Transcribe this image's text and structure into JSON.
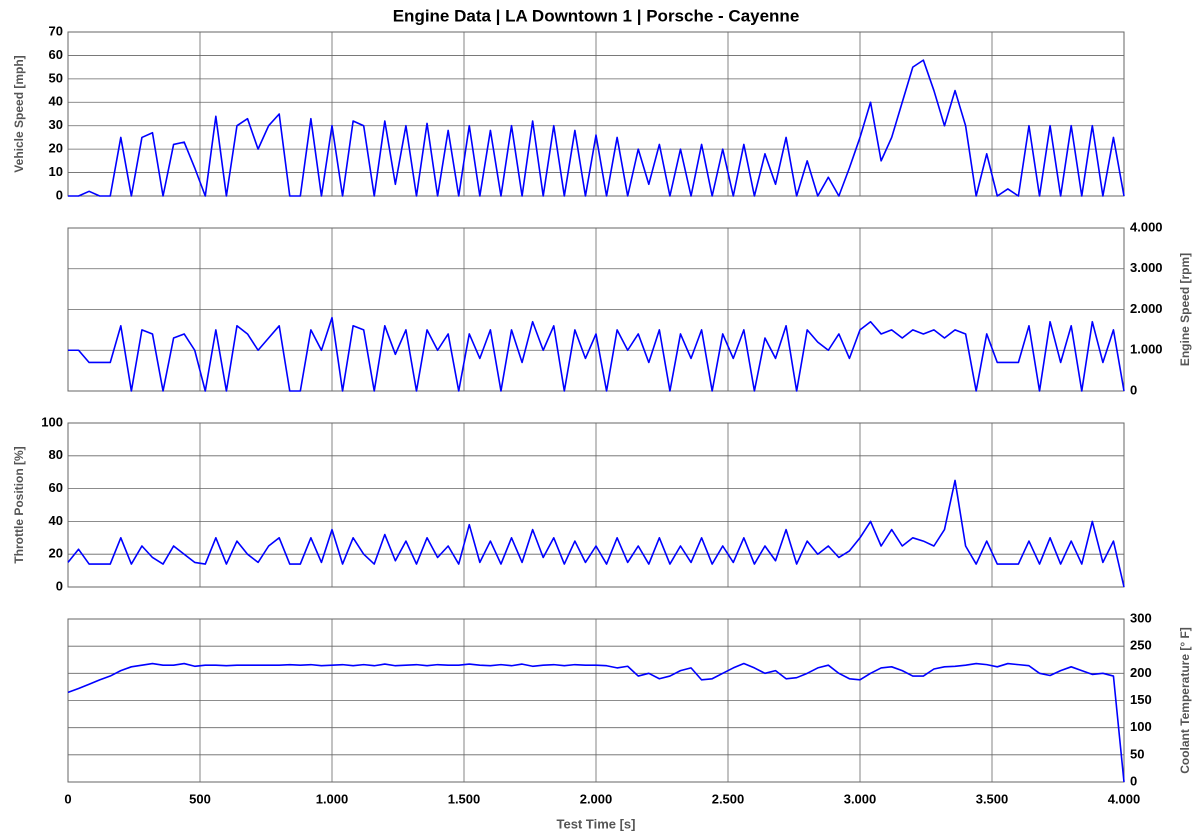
{
  "chart_data": [
    {
      "type": "line",
      "title": "Engine Data   |   LA Downtown 1   |   Porsche - Cayenne",
      "ylabel": "Vehicle Speed  [mph]",
      "y_axis_side": "left",
      "grid": true,
      "xlim": [
        0,
        4000
      ],
      "xticks": [
        0,
        500,
        1000,
        1500,
        2000,
        2500,
        3000,
        3500,
        4000
      ],
      "ylim": [
        0,
        70
      ],
      "yticks": [
        0,
        10,
        20,
        30,
        40,
        50,
        60,
        70
      ],
      "x": [
        0,
        40,
        80,
        120,
        160,
        200,
        240,
        280,
        320,
        360,
        400,
        440,
        480,
        520,
        560,
        600,
        640,
        680,
        720,
        760,
        800,
        840,
        880,
        920,
        960,
        1000,
        1040,
        1080,
        1120,
        1160,
        1200,
        1240,
        1280,
        1320,
        1360,
        1400,
        1440,
        1480,
        1520,
        1560,
        1600,
        1640,
        1680,
        1720,
        1760,
        1800,
        1840,
        1880,
        1920,
        1960,
        2000,
        2040,
        2080,
        2120,
        2160,
        2200,
        2240,
        2280,
        2320,
        2360,
        2400,
        2440,
        2480,
        2520,
        2560,
        2600,
        2640,
        2680,
        2720,
        2760,
        2800,
        2840,
        2880,
        2920,
        2960,
        3000,
        3040,
        3080,
        3120,
        3160,
        3200,
        3240,
        3280,
        3320,
        3360,
        3400,
        3440,
        3480,
        3520,
        3560,
        3600,
        3640,
        3680,
        3720,
        3760,
        3800,
        3840,
        3880,
        3920,
        3960,
        4000
      ],
      "series": [
        {
          "name": "Vehicle Speed",
          "color": "#0000ff",
          "values": [
            0,
            0,
            2,
            0,
            0,
            25,
            0,
            25,
            27,
            0,
            22,
            23,
            12,
            0,
            34,
            0,
            30,
            33,
            20,
            30,
            35,
            0,
            0,
            33,
            0,
            30,
            0,
            32,
            30,
            0,
            32,
            5,
            30,
            0,
            31,
            0,
            28,
            0,
            30,
            0,
            28,
            0,
            30,
            0,
            32,
            0,
            30,
            0,
            28,
            0,
            26,
            0,
            25,
            0,
            20,
            5,
            22,
            0,
            20,
            0,
            22,
            0,
            20,
            0,
            22,
            0,
            18,
            5,
            25,
            0,
            15,
            0,
            8,
            0,
            12,
            25,
            40,
            15,
            25,
            40,
            55,
            58,
            45,
            30,
            45,
            30,
            0,
            18,
            0,
            3,
            0,
            30,
            0,
            30,
            0,
            30,
            0,
            30,
            0,
            25,
            0
          ]
        }
      ]
    },
    {
      "type": "line",
      "ylabel": "Engine Speed  [rpm]",
      "y_axis_side": "right",
      "grid": true,
      "xlim": [
        0,
        4000
      ],
      "xticks": [
        0,
        500,
        1000,
        1500,
        2000,
        2500,
        3000,
        3500,
        4000
      ],
      "ylim": [
        0,
        4000
      ],
      "yticks": [
        0,
        {
          "value": 1000,
          "label": "1.000"
        },
        {
          "value": 2000,
          "label": "2.000"
        },
        {
          "value": 3000,
          "label": "3.000"
        },
        {
          "value": 4000,
          "label": "4.000"
        }
      ],
      "x": [
        0,
        40,
        80,
        120,
        160,
        200,
        240,
        280,
        320,
        360,
        400,
        440,
        480,
        520,
        560,
        600,
        640,
        680,
        720,
        760,
        800,
        840,
        880,
        920,
        960,
        1000,
        1040,
        1080,
        1120,
        1160,
        1200,
        1240,
        1280,
        1320,
        1360,
        1400,
        1440,
        1480,
        1520,
        1560,
        1600,
        1640,
        1680,
        1720,
        1760,
        1800,
        1840,
        1880,
        1920,
        1960,
        2000,
        2040,
        2080,
        2120,
        2160,
        2200,
        2240,
        2280,
        2320,
        2360,
        2400,
        2440,
        2480,
        2520,
        2560,
        2600,
        2640,
        2680,
        2720,
        2760,
        2800,
        2840,
        2880,
        2920,
        2960,
        3000,
        3040,
        3080,
        3120,
        3160,
        3200,
        3240,
        3280,
        3320,
        3360,
        3400,
        3440,
        3480,
        3520,
        3560,
        3600,
        3640,
        3680,
        3720,
        3760,
        3800,
        3840,
        3880,
        3920,
        3960,
        4000
      ],
      "series": [
        {
          "name": "Engine Speed",
          "color": "#0000ff",
          "values": [
            1000,
            1000,
            700,
            700,
            700,
            1600,
            0,
            1500,
            1400,
            0,
            1300,
            1400,
            1000,
            0,
            1500,
            0,
            1600,
            1400,
            1000,
            1300,
            1600,
            0,
            0,
            1500,
            1000,
            1800,
            0,
            1600,
            1500,
            0,
            1600,
            900,
            1500,
            0,
            1500,
            1000,
            1400,
            0,
            1400,
            800,
            1500,
            0,
            1500,
            700,
            1700,
            1000,
            1600,
            0,
            1500,
            800,
            1400,
            0,
            1500,
            1000,
            1400,
            700,
            1500,
            0,
            1400,
            800,
            1500,
            0,
            1400,
            800,
            1500,
            0,
            1300,
            800,
            1600,
            0,
            1500,
            1200,
            1000,
            1400,
            800,
            1500,
            1700,
            1400,
            1500,
            1300,
            1500,
            1400,
            1500,
            1300,
            1500,
            1400,
            0,
            1400,
            700,
            700,
            700,
            1600,
            0,
            1700,
            700,
            1600,
            0,
            1700,
            700,
            1500,
            0
          ]
        }
      ]
    },
    {
      "type": "line",
      "ylabel": "Throttle Position  [%]",
      "y_axis_side": "left",
      "grid": true,
      "xlim": [
        0,
        4000
      ],
      "xticks": [
        0,
        500,
        1000,
        1500,
        2000,
        2500,
        3000,
        3500,
        4000
      ],
      "ylim": [
        0,
        100
      ],
      "yticks": [
        0,
        20,
        40,
        60,
        80,
        100
      ],
      "x": [
        0,
        40,
        80,
        120,
        160,
        200,
        240,
        280,
        320,
        360,
        400,
        440,
        480,
        520,
        560,
        600,
        640,
        680,
        720,
        760,
        800,
        840,
        880,
        920,
        960,
        1000,
        1040,
        1080,
        1120,
        1160,
        1200,
        1240,
        1280,
        1320,
        1360,
        1400,
        1440,
        1480,
        1520,
        1560,
        1600,
        1640,
        1680,
        1720,
        1760,
        1800,
        1840,
        1880,
        1920,
        1960,
        2000,
        2040,
        2080,
        2120,
        2160,
        2200,
        2240,
        2280,
        2320,
        2360,
        2400,
        2440,
        2480,
        2520,
        2560,
        2600,
        2640,
        2680,
        2720,
        2760,
        2800,
        2840,
        2880,
        2920,
        2960,
        3000,
        3040,
        3080,
        3120,
        3160,
        3200,
        3240,
        3280,
        3320,
        3360,
        3400,
        3440,
        3480,
        3520,
        3560,
        3600,
        3640,
        3680,
        3720,
        3760,
        3800,
        3840,
        3880,
        3920,
        3960,
        4000
      ],
      "series": [
        {
          "name": "Throttle Position",
          "color": "#0000ff",
          "values": [
            15,
            23,
            14,
            14,
            14,
            30,
            14,
            25,
            18,
            14,
            25,
            20,
            15,
            14,
            30,
            14,
            28,
            20,
            15,
            25,
            30,
            14,
            14,
            30,
            15,
            35,
            14,
            30,
            20,
            14,
            32,
            16,
            28,
            14,
            30,
            18,
            25,
            14,
            38,
            15,
            28,
            14,
            30,
            15,
            35,
            18,
            30,
            14,
            28,
            15,
            25,
            14,
            30,
            15,
            25,
            14,
            30,
            14,
            25,
            15,
            30,
            14,
            25,
            15,
            30,
            14,
            25,
            16,
            35,
            14,
            28,
            20,
            25,
            18,
            22,
            30,
            40,
            25,
            35,
            25,
            30,
            28,
            25,
            35,
            65,
            25,
            14,
            28,
            14,
            14,
            14,
            28,
            14,
            30,
            14,
            28,
            14,
            40,
            15,
            28,
            0
          ]
        }
      ]
    },
    {
      "type": "line",
      "ylabel": "Coolant Temperature  [° F]",
      "xlabel": "Test Time [s]",
      "y_axis_side": "right",
      "grid": true,
      "xlim": [
        0,
        4000
      ],
      "xticks": [
        0,
        500,
        {
          "value": 1000,
          "label": "1.000"
        },
        {
          "value": 1500,
          "label": "1.500"
        },
        {
          "value": 2000,
          "label": "2.000"
        },
        {
          "value": 2500,
          "label": "2.500"
        },
        {
          "value": 3000,
          "label": "3.000"
        },
        {
          "value": 3500,
          "label": "3.500"
        },
        {
          "value": 4000,
          "label": "4.000"
        }
      ],
      "ylim": [
        0,
        300
      ],
      "yticks": [
        0,
        50,
        100,
        150,
        200,
        250,
        300
      ],
      "x": [
        0,
        40,
        80,
        120,
        160,
        200,
        240,
        280,
        320,
        360,
        400,
        440,
        480,
        520,
        560,
        600,
        640,
        680,
        720,
        760,
        800,
        840,
        880,
        920,
        960,
        1000,
        1040,
        1080,
        1120,
        1160,
        1200,
        1240,
        1280,
        1320,
        1360,
        1400,
        1440,
        1480,
        1520,
        1560,
        1600,
        1640,
        1680,
        1720,
        1760,
        1800,
        1840,
        1880,
        1920,
        1960,
        2000,
        2040,
        2080,
        2120,
        2160,
        2200,
        2240,
        2280,
        2320,
        2360,
        2400,
        2440,
        2480,
        2520,
        2560,
        2600,
        2640,
        2680,
        2720,
        2760,
        2800,
        2840,
        2880,
        2920,
        2960,
        3000,
        3040,
        3080,
        3120,
        3160,
        3200,
        3240,
        3280,
        3320,
        3360,
        3400,
        3440,
        3480,
        3520,
        3560,
        3600,
        3640,
        3680,
        3720,
        3760,
        3800,
        3840,
        3880,
        3920,
        3960,
        4000
      ],
      "series": [
        {
          "name": "Coolant Temperature",
          "color": "#0000ff",
          "values": [
            165,
            172,
            180,
            188,
            195,
            205,
            212,
            215,
            218,
            215,
            215,
            218,
            213,
            215,
            215,
            214,
            215,
            215,
            215,
            215,
            215,
            216,
            215,
            216,
            214,
            215,
            216,
            214,
            216,
            214,
            217,
            214,
            215,
            216,
            214,
            216,
            215,
            215,
            217,
            215,
            214,
            216,
            214,
            217,
            213,
            215,
            216,
            214,
            216,
            215,
            215,
            214,
            210,
            213,
            195,
            200,
            190,
            195,
            205,
            210,
            188,
            190,
            200,
            210,
            218,
            210,
            200,
            205,
            190,
            192,
            200,
            210,
            215,
            200,
            190,
            188,
            200,
            210,
            212,
            205,
            195,
            195,
            208,
            212,
            213,
            215,
            218,
            216,
            212,
            218,
            216,
            214,
            200,
            196,
            205,
            212,
            205,
            198,
            200,
            195,
            0
          ]
        }
      ]
    }
  ]
}
